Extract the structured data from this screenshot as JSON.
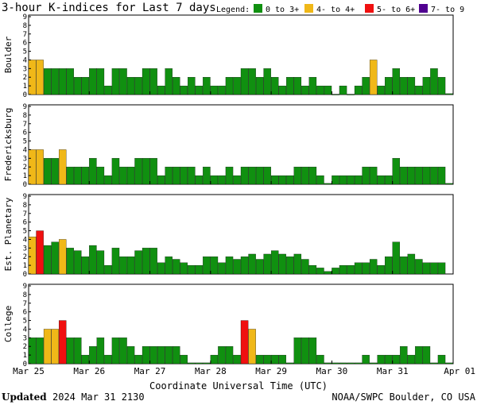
{
  "title": "3-hour K-indices for Last 7 days",
  "legend": {
    "label": "Legend:",
    "items": [
      {
        "label": "0 to 3+",
        "color": "#109010"
      },
      {
        "label": "4- to 4+",
        "color": "#f0b818"
      },
      {
        "label": "5- to 6+",
        "color": "#f01010"
      },
      {
        "label": "7- to 9",
        "color": "#500090"
      }
    ]
  },
  "footer": {
    "updated_label": "Updated",
    "updated_value": "2024 Mar 31 2130",
    "credit": "NOAA/SWPC Boulder, CO USA"
  },
  "chart_data": {
    "type": "bar",
    "xlabel": "Coordinate Universal Time (UTC)",
    "x_ticks": [
      "Mar 25",
      "Mar 26",
      "Mar 27",
      "Mar 28",
      "Mar 29",
      "Mar 30",
      "Mar 31",
      "Apr 01"
    ],
    "y_ticks": [
      "0",
      "1",
      "2",
      "3",
      "4",
      "5",
      "6",
      "7",
      "8",
      "9"
    ],
    "ylim": [
      0,
      9
    ],
    "grid": false,
    "color_thresholds": {
      "green_below": 4,
      "yellow_below": 5,
      "red_below": 7
    },
    "panels": [
      {
        "name": "Boulder",
        "values": [
          4,
          4,
          3,
          3,
          3,
          3,
          2,
          2,
          3,
          3,
          1,
          3,
          3,
          2,
          2,
          3,
          3,
          1,
          3,
          2,
          1,
          2,
          1,
          2,
          1,
          1,
          2,
          2,
          3,
          3,
          2,
          3,
          2,
          1,
          2,
          2,
          1,
          2,
          1,
          1,
          0,
          1,
          0,
          1,
          2,
          4,
          1,
          2,
          3,
          2,
          2,
          1,
          2,
          3,
          2,
          0.1
        ]
      },
      {
        "name": "Fredericksburg",
        "values": [
          4,
          4,
          3,
          3,
          4,
          2,
          2,
          2,
          3,
          2,
          1,
          3,
          2,
          2,
          3,
          3,
          3,
          1,
          2,
          2,
          2,
          2,
          1,
          2,
          1,
          1,
          2,
          1,
          2,
          2,
          2,
          2,
          1,
          1,
          1,
          2,
          2,
          2,
          1,
          0.1,
          1,
          1,
          1,
          1,
          2,
          2,
          1,
          1,
          3,
          2,
          2,
          2,
          2,
          2,
          2,
          0.1
        ]
      },
      {
        "name": "Est. Planetary",
        "values": [
          4.3,
          5,
          3.3,
          3.7,
          4,
          3,
          2.7,
          2,
          3.3,
          2.7,
          1,
          3,
          2,
          2,
          2.7,
          3,
          3,
          1.3,
          2,
          1.7,
          1.3,
          1,
          1,
          2,
          2,
          1.3,
          2,
          1.7,
          2,
          2.3,
          1.7,
          2.3,
          2.7,
          2.3,
          2,
          2.3,
          1.7,
          1,
          0.7,
          0.3,
          0.7,
          1,
          1,
          1.3,
          1.3,
          1.7,
          1,
          2,
          3.7,
          2,
          2.3,
          1.7,
          1.3,
          1.3,
          1.3
        ]
      },
      {
        "name": "College",
        "values": [
          3,
          3,
          4,
          4,
          5,
          3,
          3,
          1,
          2,
          3,
          1,
          3,
          3,
          2,
          1,
          2,
          2,
          2,
          2,
          2,
          1,
          0.1,
          0.1,
          0.1,
          1,
          2,
          2,
          1,
          5,
          4,
          1,
          1,
          1,
          1,
          0.1,
          3,
          3,
          3,
          1,
          0.1,
          0.1,
          0.1,
          0.1,
          0.1,
          1,
          0.1,
          1,
          1,
          1,
          2,
          1,
          2,
          2,
          0.1,
          1,
          0.1
        ]
      }
    ]
  }
}
